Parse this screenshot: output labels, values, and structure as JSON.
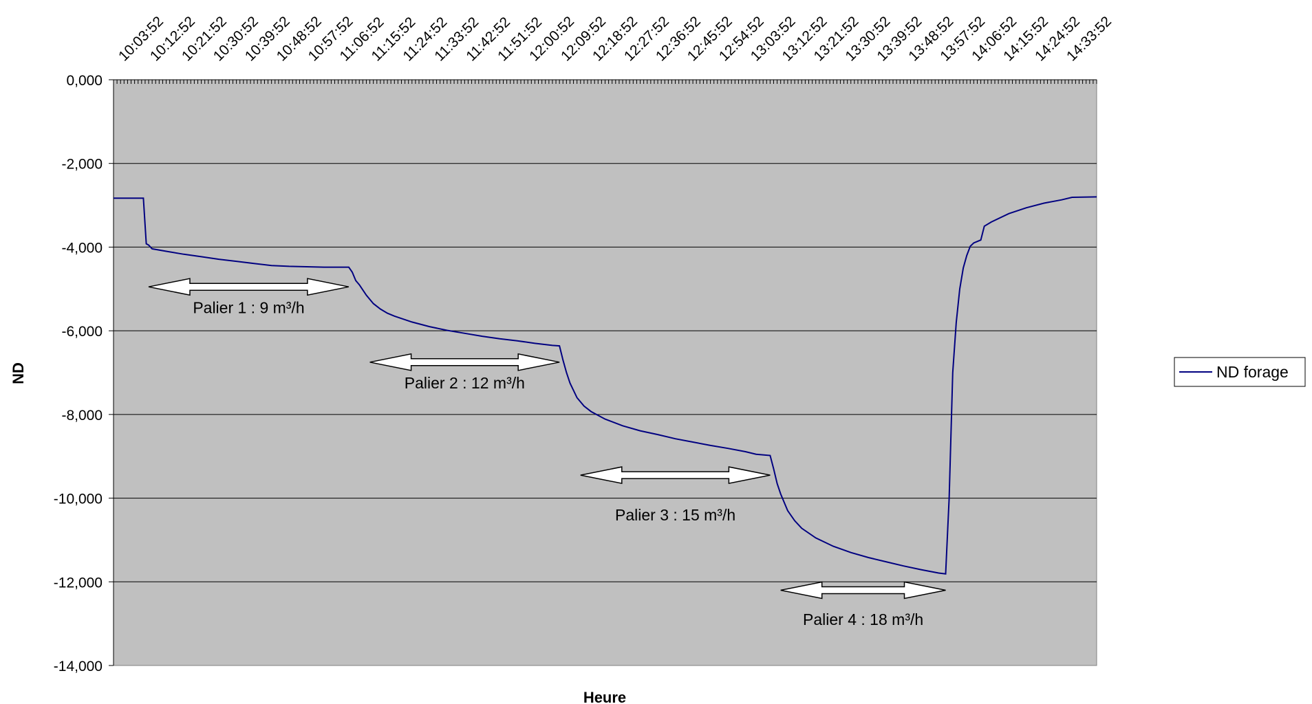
{
  "chart_data": {
    "type": "line",
    "title": "",
    "xlabel": "Heure",
    "ylabel": "ND",
    "ylim": [
      -14000,
      0
    ],
    "yticks": [
      0,
      -2000,
      -4000,
      -6000,
      -8000,
      -10000,
      -12000,
      -14000
    ],
    "ytick_labels": [
      "0,000",
      "-2,000",
      "-4,000",
      "-6,000",
      "-8,000",
      "-10,000",
      "-12,000",
      "-14,000"
    ],
    "xlim_minutes": [
      "10:00:00",
      "14:40:00"
    ],
    "xticks": [
      "10:03:52",
      "10:12:52",
      "10:21:52",
      "10:30:52",
      "10:39:52",
      "10:48:52",
      "10:57:52",
      "11:06:52",
      "11:15:52",
      "11:24:52",
      "11:33:52",
      "11:42:52",
      "11:51:52",
      "12:00:52",
      "12:09:52",
      "12:18:52",
      "12:27:52",
      "12:36:52",
      "12:45:52",
      "12:54:52",
      "13:03:52",
      "13:12:52",
      "13:21:52",
      "13:30:52",
      "13:39:52",
      "13:48:52",
      "13:57:52",
      "14:06:52",
      "14:15:52",
      "14:24:52",
      "14:33:52"
    ],
    "grid": true,
    "background": "#c0c0c0",
    "legend_position": "right",
    "series": [
      {
        "name": "ND forage",
        "color": "#000080",
        "points": [
          [
            "10:00:00",
            -2830
          ],
          [
            "10:08:30",
            -2830
          ],
          [
            "10:09:20",
            -3920
          ],
          [
            "10:10:00",
            -3950
          ],
          [
            "10:11:00",
            -4040
          ],
          [
            "10:15:00",
            -4100
          ],
          [
            "10:20:00",
            -4170
          ],
          [
            "10:25:00",
            -4230
          ],
          [
            "10:30:00",
            -4290
          ],
          [
            "10:35:00",
            -4340
          ],
          [
            "10:40:00",
            -4390
          ],
          [
            "10:45:00",
            -4440
          ],
          [
            "10:50:00",
            -4460
          ],
          [
            "10:55:00",
            -4470
          ],
          [
            "11:00:00",
            -4480
          ],
          [
            "11:07:00",
            -4480
          ],
          [
            "11:08:00",
            -4600
          ],
          [
            "11:09:00",
            -4800
          ],
          [
            "11:10:00",
            -4900
          ],
          [
            "11:12:00",
            -5150
          ],
          [
            "11:14:00",
            -5350
          ],
          [
            "11:16:00",
            -5480
          ],
          [
            "11:18:00",
            -5580
          ],
          [
            "11:20:00",
            -5650
          ],
          [
            "11:25:00",
            -5790
          ],
          [
            "11:30:00",
            -5900
          ],
          [
            "11:35:00",
            -5990
          ],
          [
            "11:40:00",
            -6060
          ],
          [
            "11:45:00",
            -6130
          ],
          [
            "11:50:00",
            -6190
          ],
          [
            "11:55:00",
            -6240
          ],
          [
            "12:00:00",
            -6300
          ],
          [
            "12:05:00",
            -6350
          ],
          [
            "12:07:00",
            -6360
          ],
          [
            "12:08:00",
            -6700
          ],
          [
            "12:09:00",
            -7000
          ],
          [
            "12:10:00",
            -7250
          ],
          [
            "12:12:00",
            -7600
          ],
          [
            "12:14:00",
            -7800
          ],
          [
            "12:16:00",
            -7930
          ],
          [
            "12:20:00",
            -8110
          ],
          [
            "12:25:00",
            -8270
          ],
          [
            "12:30:00",
            -8390
          ],
          [
            "12:35:00",
            -8480
          ],
          [
            "12:40:00",
            -8580
          ],
          [
            "12:45:00",
            -8660
          ],
          [
            "12:50:00",
            -8740
          ],
          [
            "12:55:00",
            -8810
          ],
          [
            "13:00:00",
            -8890
          ],
          [
            "13:03:00",
            -8950
          ],
          [
            "13:07:00",
            -8980
          ],
          [
            "13:08:00",
            -9300
          ],
          [
            "13:09:00",
            -9650
          ],
          [
            "13:10:00",
            -9900
          ],
          [
            "13:12:00",
            -10300
          ],
          [
            "13:14:00",
            -10540
          ],
          [
            "13:16:00",
            -10720
          ],
          [
            "13:20:00",
            -10950
          ],
          [
            "13:25:00",
            -11150
          ],
          [
            "13:30:00",
            -11300
          ],
          [
            "13:35:00",
            -11420
          ],
          [
            "13:40:00",
            -11520
          ],
          [
            "13:45:00",
            -11620
          ],
          [
            "13:50:00",
            -11710
          ],
          [
            "13:55:00",
            -11790
          ],
          [
            "13:57:00",
            -11810
          ],
          [
            "13:58:00",
            -10000
          ],
          [
            "13:59:00",
            -7000
          ],
          [
            "14:00:00",
            -5800
          ],
          [
            "14:01:00",
            -5000
          ],
          [
            "14:02:00",
            -4500
          ],
          [
            "14:03:00",
            -4200
          ],
          [
            "14:04:00",
            -3980
          ],
          [
            "14:05:00",
            -3900
          ],
          [
            "14:07:00",
            -3830
          ],
          [
            "14:08:00",
            -3500
          ],
          [
            "14:10:00",
            -3400
          ],
          [
            "14:15:00",
            -3200
          ],
          [
            "14:20:00",
            -3060
          ],
          [
            "14:25:00",
            -2950
          ],
          [
            "14:30:00",
            -2870
          ],
          [
            "14:33:00",
            -2810
          ],
          [
            "14:40:00",
            -2800
          ]
        ]
      }
    ],
    "annotations": [
      {
        "label": "Palier 1 : 9 m³/h",
        "from": "10:10:00",
        "to": "11:07:00",
        "y": -4950,
        "label_y": -5450
      },
      {
        "label": "Palier 2 : 12 m³/h",
        "from": "11:13:00",
        "to": "12:07:00",
        "y": -6750,
        "label_y": -7250
      },
      {
        "label": "Palier 3 : 15 m³/h",
        "from": "12:13:00",
        "to": "13:07:00",
        "y": -9450,
        "label_y": -10400
      },
      {
        "label": "Palier 4 : 18 m³/h",
        "from": "13:10:00",
        "to": "13:57:00",
        "y": -12200,
        "label_y": -12900
      }
    ]
  }
}
